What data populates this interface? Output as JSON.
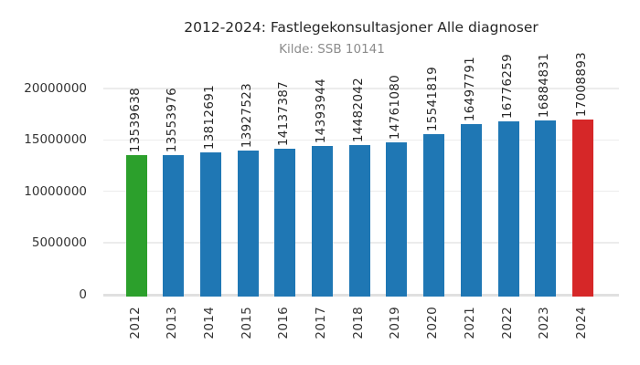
{
  "title": "2012-2024: Fastlegekonsultasjoner Alle diagnoser",
  "subtitle": "Kilde: SSB 10141",
  "chart_data": {
    "type": "bar",
    "title": "2012-2024: Fastlegekonsultasjoner Alle diagnoser",
    "subtitle": "Kilde: SSB 10141",
    "categories": [
      "2012",
      "2013",
      "2014",
      "2015",
      "2016",
      "2017",
      "2018",
      "2019",
      "2020",
      "2021",
      "2022",
      "2023",
      "2024"
    ],
    "values": [
      13539638,
      13553976,
      13812691,
      13927523,
      14137387,
      14393944,
      14482042,
      14761080,
      15541819,
      16497791,
      16776259,
      16884831,
      17008893
    ],
    "bar_value_labels": [
      "13539638",
      "13553976",
      "13812691",
      "13927523",
      "14137387",
      "14393944",
      "14482042",
      "14761080",
      "15541819",
      "16497791",
      "16776259",
      "16884831",
      "17008893"
    ],
    "bar_colors": [
      "#2ca02c",
      "#1f77b4",
      "#1f77b4",
      "#1f77b4",
      "#1f77b4",
      "#1f77b4",
      "#1f77b4",
      "#1f77b4",
      "#1f77b4",
      "#1f77b4",
      "#1f77b4",
      "#1f77b4",
      "#d62728"
    ],
    "yticks": [
      0,
      5000000,
      10000000,
      15000000,
      20000000
    ],
    "ytick_labels": [
      "0",
      "5000000",
      "10000000",
      "15000000",
      "20000000"
    ],
    "ylim": [
      0,
      22000000
    ],
    "xlabel": "",
    "ylabel": "",
    "grid": true,
    "legend": false,
    "xtick_rotation": 90,
    "value_label_rotation": 90
  },
  "colors": {
    "background": "#ffffff",
    "grid": "#ececec",
    "baseline": "#e0e0e0",
    "title": "#262626",
    "subtitle": "#8c8c8c",
    "tick_label": "#333333",
    "bar_first": "#2ca02c",
    "bar_default": "#1f77b4",
    "bar_last": "#d62728"
  }
}
